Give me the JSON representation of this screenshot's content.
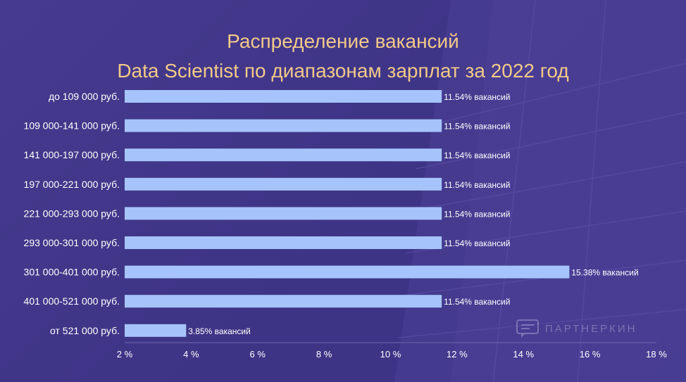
{
  "title": {
    "line1": "Распределение вакансий",
    "line2": "Data Scientist по диапазонам зарплат за 2022 год"
  },
  "watermark": {
    "text": "ПАРТНЕРКИН",
    "icon": "chat-bubble-icon"
  },
  "colors": {
    "background": "#40368a",
    "bar": "#a6c4fb",
    "title": "#f2c98a",
    "text": "#ffffff"
  },
  "chart_data": {
    "type": "bar",
    "orientation": "horizontal",
    "title": "Распределение вакансий Data Scientist по диапазонам зарплат за 2022 год",
    "categories": [
      "до 109 000 руб.",
      "109 000-141 000 руб.",
      "141 000-197 000 руб.",
      "197 000-221 000 руб.",
      "221 000-293 000 руб.",
      "293 000-301 000 руб.",
      "301 000-401 000 руб.",
      "401 000-521 000 руб.",
      "от 521 000 руб."
    ],
    "values": [
      11.54,
      11.54,
      11.54,
      11.54,
      11.54,
      11.54,
      15.38,
      11.54,
      3.85
    ],
    "data_labels": [
      "11.54% вакансий",
      "11.54% вакансий",
      "11.54% вакансий",
      "11.54% вакансий",
      "11.54% вакансий",
      "11.54% вакансий",
      "15.38% вакансий",
      "11.54% вакансий",
      "3.85% вакансий"
    ],
    "xlim": [
      2,
      18
    ],
    "xticks": [
      2,
      4,
      6,
      8,
      10,
      12,
      14,
      16,
      18
    ],
    "xtick_labels": [
      "2 %",
      "4 %",
      "6 %",
      "8 %",
      "10 %",
      "12 %",
      "14 %",
      "16 %",
      "18 %"
    ],
    "xlabel": "",
    "ylabel": "",
    "grid": false,
    "legend": "none"
  }
}
